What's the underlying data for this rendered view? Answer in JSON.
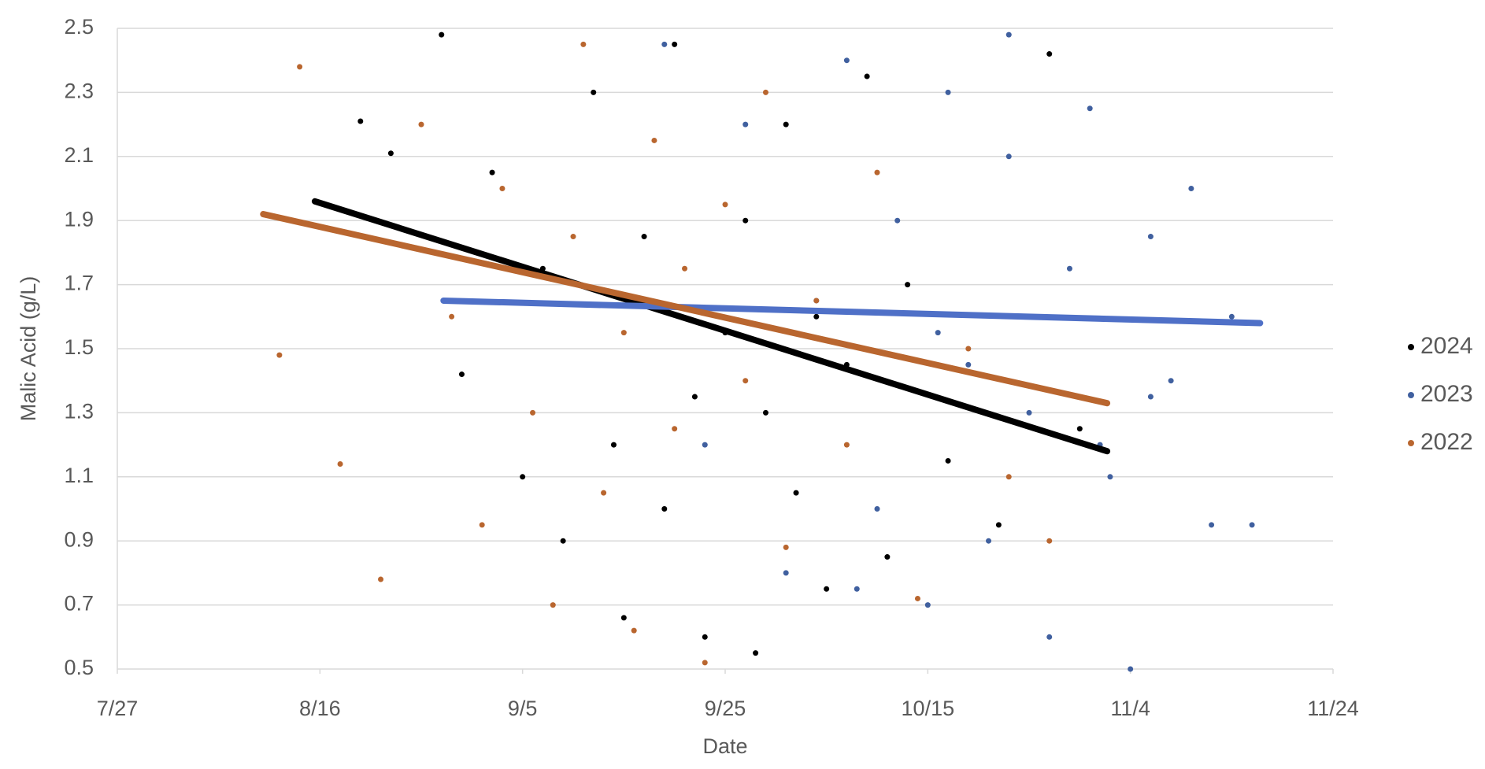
{
  "chart_data": {
    "type": "scatter",
    "x_label": "Date",
    "y_label": "Malic Acid (g/L)",
    "xlim": [
      208,
      328
    ],
    "xticks": [
      {
        "value": 208,
        "label": "7/27"
      },
      {
        "value": 228,
        "label": "8/16"
      },
      {
        "value": 248,
        "label": "9/5"
      },
      {
        "value": 268,
        "label": "9/25"
      },
      {
        "value": 288,
        "label": "10/15"
      },
      {
        "value": 308,
        "label": "11/4"
      },
      {
        "value": 328,
        "label": "11/24"
      }
    ],
    "ylim": [
      0.5,
      2.5
    ],
    "yticks": [
      0.5,
      0.7,
      0.9,
      1.1,
      1.3,
      1.5,
      1.7,
      1.9,
      2.1,
      2.3,
      2.5
    ],
    "grid": true,
    "legend": "right",
    "series": [
      {
        "name": "2024",
        "color": "#000000",
        "x": [
          232,
          235,
          240,
          242,
          245,
          248,
          250,
          252,
          255,
          257,
          258,
          260,
          262,
          263,
          265,
          266,
          268,
          270,
          271,
          272,
          274,
          275,
          277,
          278,
          280,
          282,
          284,
          286,
          290,
          295,
          300,
          303
        ],
        "values": [
          2.21,
          2.11,
          2.48,
          1.42,
          2.05,
          1.1,
          1.75,
          0.9,
          2.3,
          1.2,
          0.66,
          1.85,
          1.0,
          2.45,
          1.35,
          0.6,
          1.55,
          1.9,
          0.55,
          1.3,
          2.2,
          1.05,
          1.6,
          0.75,
          1.45,
          2.35,
          0.85,
          1.7,
          1.15,
          0.95,
          2.42,
          1.25
        ],
        "trendline": {
          "x": [
            227.5,
            305.7
          ],
          "values": [
            1.96,
            1.18
          ],
          "color": "#000000"
        }
      },
      {
        "name": "2023",
        "color": "#40609f",
        "x": [
          262,
          266,
          270,
          274,
          277,
          280,
          283,
          285,
          288,
          290,
          292,
          294,
          296,
          298,
          300,
          302,
          304,
          306,
          308,
          310,
          312,
          314,
          316,
          318,
          320,
          296,
          289,
          305,
          281,
          310
        ],
        "values": [
          2.45,
          1.2,
          2.2,
          0.8,
          1.65,
          2.4,
          1.0,
          1.9,
          0.7,
          2.3,
          1.45,
          0.9,
          2.1,
          1.3,
          0.6,
          1.75,
          2.25,
          1.1,
          0.5,
          1.85,
          1.4,
          2.0,
          0.95,
          1.6,
          0.95,
          2.48,
          1.55,
          1.2,
          0.75,
          1.35
        ],
        "trendline": {
          "x": [
            240.2,
            320.8
          ],
          "values": [
            1.65,
            1.58
          ],
          "color": "#4f70c7"
        }
      },
      {
        "name": "2022",
        "color": "#b9662f",
        "x": [
          224,
          226,
          230,
          234,
          238,
          241,
          244,
          246,
          249,
          251,
          253,
          254,
          256,
          258,
          259,
          261,
          263,
          264,
          266,
          268,
          270,
          272,
          274,
          277,
          280,
          283,
          287,
          292,
          296,
          300
        ],
        "values": [
          1.48,
          2.38,
          1.14,
          0.78,
          2.2,
          1.6,
          0.95,
          2.0,
          1.3,
          0.7,
          1.85,
          2.45,
          1.05,
          1.55,
          0.62,
          2.15,
          1.25,
          1.75,
          0.52,
          1.95,
          1.4,
          2.3,
          0.88,
          1.65,
          1.2,
          2.05,
          0.72,
          1.5,
          1.1,
          0.9
        ],
        "trendline": {
          "x": [
            222.4,
            305.7
          ],
          "values": [
            1.92,
            1.33
          ],
          "color": "#b9662f"
        }
      }
    ]
  }
}
